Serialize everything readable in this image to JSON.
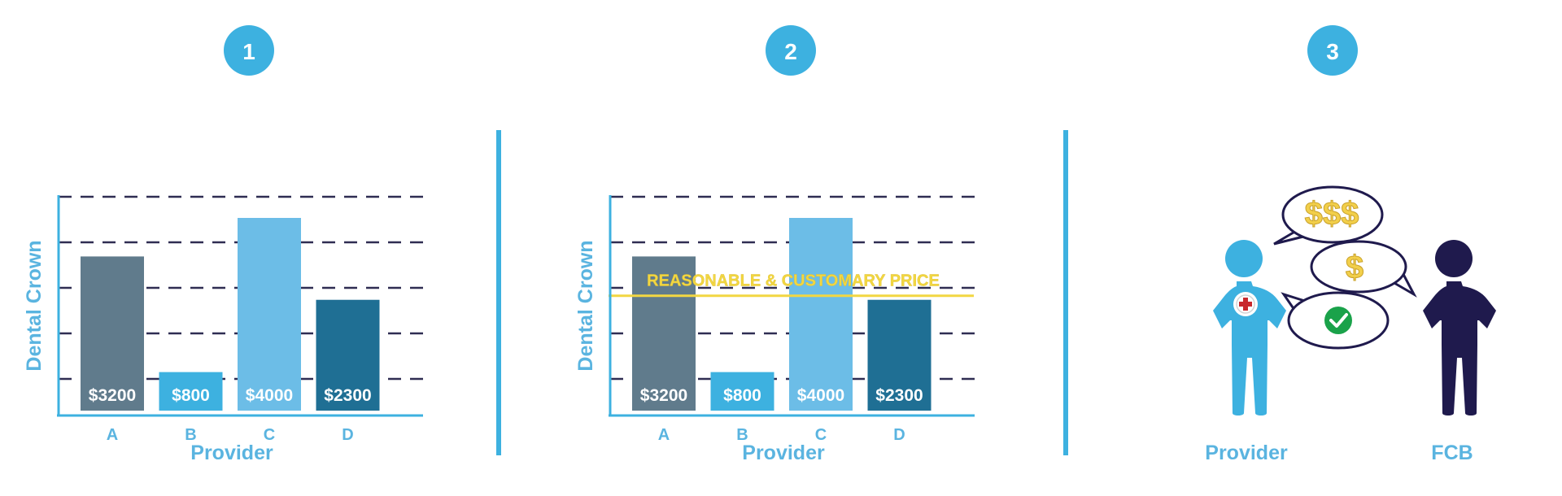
{
  "steps": [
    "1",
    "2",
    "3"
  ],
  "colors": {
    "accent": "#3db1e0",
    "axis_text": "#5ab4e0",
    "grid": "#2f2d52",
    "reasonable_line": "#f2d742",
    "bar_a": "#607b8c",
    "bar_b": "#3db1e0",
    "bar_c": "#6cbde7",
    "bar_d": "#1f6f94",
    "fcb_figure": "#1f1a4d",
    "check": "#1aa24a",
    "cross": "#c8282d",
    "dollar": "#f2cf4a"
  },
  "chart_data": [
    {
      "type": "bar",
      "categories": [
        "A",
        "B",
        "C",
        "D"
      ],
      "values": [
        3200,
        800,
        4000,
        2300
      ],
      "value_labels": [
        "$3200",
        "$800",
        "$4000",
        "$2300"
      ],
      "xlabel": "Provider",
      "ylabel": "Dental Crown",
      "grid": true
    },
    {
      "type": "bar",
      "categories": [
        "A",
        "B",
        "C",
        "D"
      ],
      "values": [
        3200,
        800,
        4000,
        2300
      ],
      "value_labels": [
        "$3200",
        "$800",
        "$4000",
        "$2300"
      ],
      "xlabel": "Provider",
      "ylabel": "Dental Crown",
      "grid": true,
      "reference_line": {
        "label": "REASONABLE & CUSTOMARY PRICE",
        "value": 2300
      }
    }
  ],
  "illustration": {
    "left_label": "Provider",
    "right_label": "FCB",
    "bubble_top": "$$$",
    "bubble_middle": "$"
  }
}
